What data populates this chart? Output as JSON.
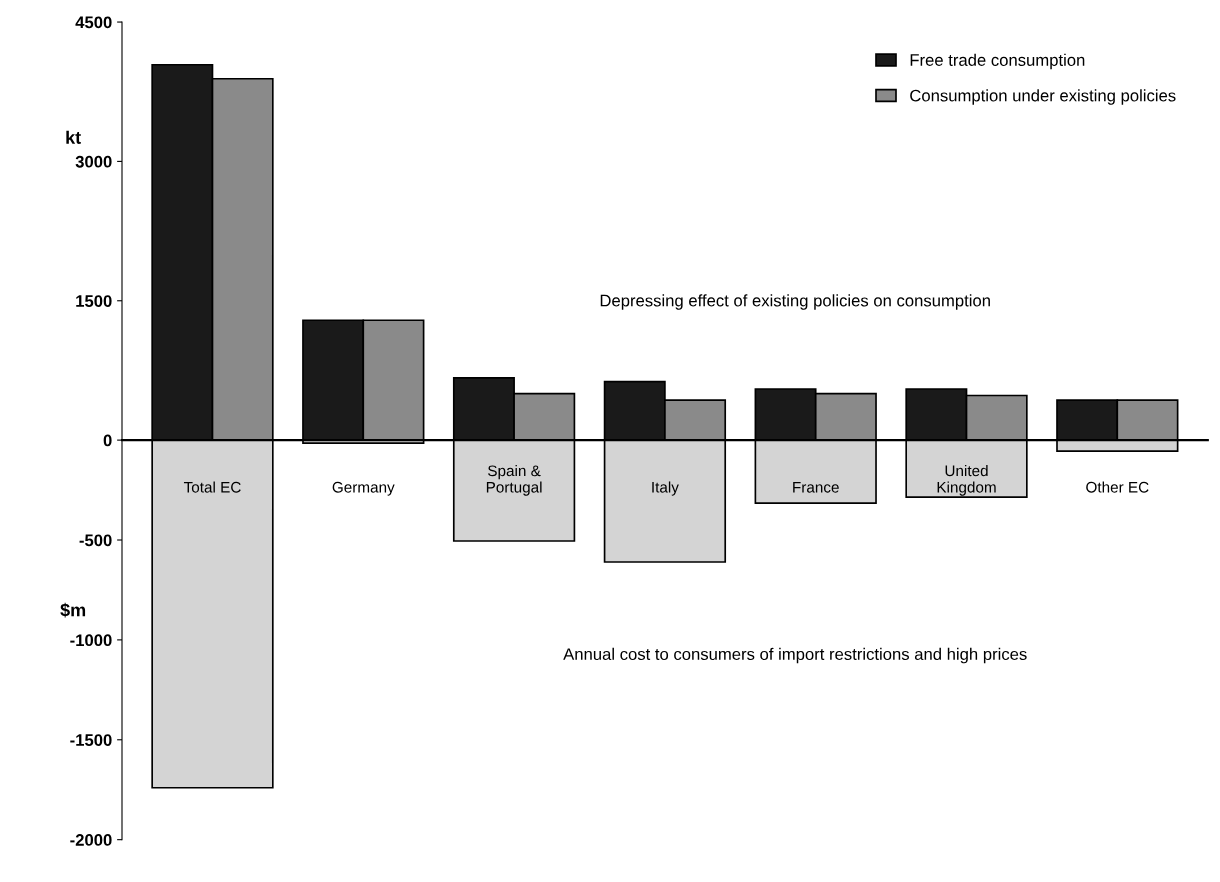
{
  "chart_data": [
    {
      "type": "bar",
      "ylabel": "kt",
      "categories": [
        null,
        null,
        null,
        null,
        null,
        null,
        null
      ],
      "series": [
        {
          "name": "Free trade consumption",
          "color": "#1a1a1a",
          "values": [
            4040,
            1290,
            670,
            630,
            550,
            550,
            430
          ]
        },
        {
          "name": "Consumption under existing policies",
          "color": "#8a8a8a",
          "values": [
            3890,
            1290,
            500,
            430,
            500,
            480,
            430
          ]
        }
      ],
      "ylim": [
        0,
        4500
      ],
      "yticks": [
        0,
        1500,
        3000,
        4500
      ],
      "tick_labels": "y",
      "legend": "top right",
      "grid": false,
      "annotations": [
        "Depressing effect of existing policies on consumption"
      ]
    },
    {
      "type": "bar",
      "ylabel": "$m",
      "categories": [
        "Total EC",
        "Germany",
        "Spain &\nPortugal",
        "Italy",
        "France",
        "United\nKingdom",
        "Other EC"
      ],
      "series": [
        {
          "color": "#d4d4d4",
          "values": [
            -1740,
            -15,
            -505,
            -610,
            -315,
            -285,
            -55
          ]
        }
      ],
      "ylim": [
        -2000,
        0
      ],
      "yticks": [
        -2000,
        -1500,
        -1000,
        -500
      ],
      "grid": false,
      "annotations": [
        "Annual cost to consumers of import restrictions and high prices"
      ]
    }
  ]
}
